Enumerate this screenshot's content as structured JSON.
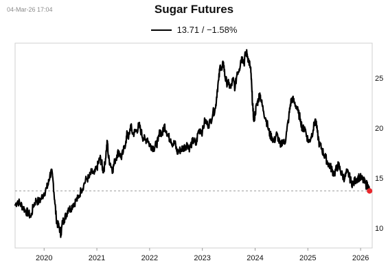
{
  "header": {
    "timestamp": "04-Mar-26 17:04",
    "title": "Sugar Futures",
    "legend_text": "13.71 / −1.58%"
  },
  "colors": {
    "line": "#000000",
    "last_point": "#e8262b",
    "reference_line": "#9a9a9a",
    "frame": "#cfcfcf"
  },
  "chart_data": {
    "type": "line",
    "title": "Sugar Futures",
    "xlabel": "",
    "ylabel": "",
    "x_ticks": [
      "2020",
      "2021",
      "2022",
      "2023",
      "2024",
      "2025",
      "2026"
    ],
    "y_ticks": [
      10,
      15,
      20,
      25
    ],
    "xlim": [
      2019.45,
      2026.22
    ],
    "ylim": [
      8.0,
      28.5
    ],
    "y_axis_position": "right",
    "grid": false,
    "reference_line": 13.71,
    "last_value": 13.71,
    "last_change": "−1.58%",
    "series": [
      {
        "points": [
          [
            2019.45,
            12.3
          ],
          [
            2019.5,
            12.7
          ],
          [
            2019.55,
            12.4
          ],
          [
            2019.6,
            12.1
          ],
          [
            2019.65,
            11.7
          ],
          [
            2019.7,
            11.5
          ],
          [
            2019.75,
            11.1
          ],
          [
            2019.8,
            12.3
          ],
          [
            2019.85,
            12.8
          ],
          [
            2019.9,
            12.6
          ],
          [
            2019.95,
            13.0
          ],
          [
            2020.0,
            13.5
          ],
          [
            2020.05,
            14.0
          ],
          [
            2020.08,
            14.4
          ],
          [
            2020.11,
            15.3
          ],
          [
            2020.14,
            15.6
          ],
          [
            2020.17,
            14.7
          ],
          [
            2020.2,
            12.8
          ],
          [
            2020.23,
            11.0
          ],
          [
            2020.26,
            10.3
          ],
          [
            2020.29,
            10.0
          ],
          [
            2020.32,
            9.4
          ],
          [
            2020.35,
            10.6
          ],
          [
            2020.38,
            10.9
          ],
          [
            2020.42,
            11.3
          ],
          [
            2020.46,
            12.0
          ],
          [
            2020.5,
            11.9
          ],
          [
            2020.55,
            12.4
          ],
          [
            2020.6,
            12.7
          ],
          [
            2020.65,
            13.0
          ],
          [
            2020.7,
            13.8
          ],
          [
            2020.75,
            14.3
          ],
          [
            2020.8,
            14.9
          ],
          [
            2020.85,
            15.0
          ],
          [
            2020.9,
            15.6
          ],
          [
            2020.95,
            15.4
          ],
          [
            2021.0,
            16.0
          ],
          [
            2021.03,
            16.5
          ],
          [
            2021.06,
            17.0
          ],
          [
            2021.09,
            16.5
          ],
          [
            2021.12,
            15.7
          ],
          [
            2021.15,
            16.3
          ],
          [
            2021.18,
            17.8
          ],
          [
            2021.2,
            18.7
          ],
          [
            2021.22,
            17.0
          ],
          [
            2021.26,
            16.4
          ],
          [
            2021.3,
            15.8
          ],
          [
            2021.34,
            16.7
          ],
          [
            2021.38,
            17.3
          ],
          [
            2021.42,
            17.7
          ],
          [
            2021.46,
            17.0
          ],
          [
            2021.5,
            17.6
          ],
          [
            2021.55,
            18.7
          ],
          [
            2021.58,
            19.6
          ],
          [
            2021.6,
            18.9
          ],
          [
            2021.64,
            20.3
          ],
          [
            2021.68,
            19.4
          ],
          [
            2021.72,
            19.6
          ],
          [
            2021.76,
            19.8
          ],
          [
            2021.8,
            20.3
          ],
          [
            2021.84,
            19.6
          ],
          [
            2021.88,
            19.0
          ],
          [
            2021.92,
            18.8
          ],
          [
            2021.96,
            19.0
          ],
          [
            2022.0,
            18.3
          ],
          [
            2022.04,
            18.2
          ],
          [
            2022.08,
            18.0
          ],
          [
            2022.12,
            18.3
          ],
          [
            2022.16,
            18.7
          ],
          [
            2022.2,
            19.8
          ],
          [
            2022.24,
            19.3
          ],
          [
            2022.28,
            20.3
          ],
          [
            2022.32,
            19.7
          ],
          [
            2022.36,
            19.1
          ],
          [
            2022.4,
            18.9
          ],
          [
            2022.44,
            18.4
          ],
          [
            2022.48,
            18.5
          ],
          [
            2022.52,
            17.6
          ],
          [
            2022.56,
            17.7
          ],
          [
            2022.6,
            17.9
          ],
          [
            2022.64,
            18.0
          ],
          [
            2022.68,
            18.2
          ],
          [
            2022.72,
            18.4
          ],
          [
            2022.76,
            18.0
          ],
          [
            2022.8,
            18.5
          ],
          [
            2022.84,
            18.8
          ],
          [
            2022.88,
            18.3
          ],
          [
            2022.92,
            19.6
          ],
          [
            2022.96,
            19.9
          ],
          [
            2023.0,
            19.6
          ],
          [
            2023.05,
            20.8
          ],
          [
            2023.1,
            20.3
          ],
          [
            2023.15,
            20.6
          ],
          [
            2023.2,
            21.5
          ],
          [
            2023.25,
            22.0
          ],
          [
            2023.28,
            23.7
          ],
          [
            2023.31,
            24.8
          ],
          [
            2023.34,
            26.3
          ],
          [
            2023.37,
            25.8
          ],
          [
            2023.4,
            26.6
          ],
          [
            2023.43,
            25.1
          ],
          [
            2023.46,
            24.6
          ],
          [
            2023.5,
            24.4
          ],
          [
            2023.54,
            24.0
          ],
          [
            2023.58,
            24.9
          ],
          [
            2023.62,
            24.0
          ],
          [
            2023.66,
            25.6
          ],
          [
            2023.7,
            25.9
          ],
          [
            2023.73,
            26.8
          ],
          [
            2023.76,
            27.1
          ],
          [
            2023.79,
            26.4
          ],
          [
            2023.82,
            27.6
          ],
          [
            2023.85,
            27.4
          ],
          [
            2023.88,
            26.7
          ],
          [
            2023.9,
            26.3
          ],
          [
            2023.92,
            25.6
          ],
          [
            2023.94,
            23.6
          ],
          [
            2023.96,
            21.7
          ],
          [
            2023.98,
            20.7
          ],
          [
            2024.0,
            21.5
          ],
          [
            2024.03,
            22.3
          ],
          [
            2024.06,
            22.8
          ],
          [
            2024.09,
            23.5
          ],
          [
            2024.12,
            22.6
          ],
          [
            2024.16,
            21.7
          ],
          [
            2024.2,
            21.0
          ],
          [
            2024.24,
            20.2
          ],
          [
            2024.28,
            19.3
          ],
          [
            2024.32,
            19.1
          ],
          [
            2024.36,
            18.6
          ],
          [
            2024.4,
            19.4
          ],
          [
            2024.44,
            19.0
          ],
          [
            2024.48,
            18.1
          ],
          [
            2024.52,
            18.8
          ],
          [
            2024.56,
            18.4
          ],
          [
            2024.6,
            19.7
          ],
          [
            2024.64,
            21.1
          ],
          [
            2024.67,
            22.4
          ],
          [
            2024.7,
            23.0
          ],
          [
            2024.74,
            22.6
          ],
          [
            2024.78,
            22.2
          ],
          [
            2024.82,
            21.5
          ],
          [
            2024.86,
            20.9
          ],
          [
            2024.9,
            19.8
          ],
          [
            2024.94,
            20.1
          ],
          [
            2024.98,
            19.2
          ],
          [
            2025.02,
            18.6
          ],
          [
            2025.06,
            19.1
          ],
          [
            2025.1,
            19.8
          ],
          [
            2025.14,
            20.9
          ],
          [
            2025.18,
            19.6
          ],
          [
            2025.22,
            18.3
          ],
          [
            2025.26,
            18.0
          ],
          [
            2025.3,
            17.4
          ],
          [
            2025.34,
            17.0
          ],
          [
            2025.38,
            16.5
          ],
          [
            2025.42,
            16.2
          ],
          [
            2025.46,
            15.8
          ],
          [
            2025.5,
            15.4
          ],
          [
            2025.54,
            15.9
          ],
          [
            2025.58,
            16.3
          ],
          [
            2025.62,
            15.7
          ],
          [
            2025.66,
            15.2
          ],
          [
            2025.7,
            15.0
          ],
          [
            2025.74,
            15.6
          ],
          [
            2025.78,
            15.3
          ],
          [
            2025.82,
            14.6
          ],
          [
            2025.86,
            14.4
          ],
          [
            2025.9,
            14.8
          ],
          [
            2025.94,
            15.0
          ],
          [
            2025.98,
            15.1
          ],
          [
            2026.02,
            14.9
          ],
          [
            2026.06,
            14.7
          ],
          [
            2026.1,
            14.3
          ],
          [
            2026.13,
            14.4
          ],
          [
            2026.15,
            13.9
          ],
          [
            2026.17,
            13.71
          ]
        ]
      }
    ]
  }
}
